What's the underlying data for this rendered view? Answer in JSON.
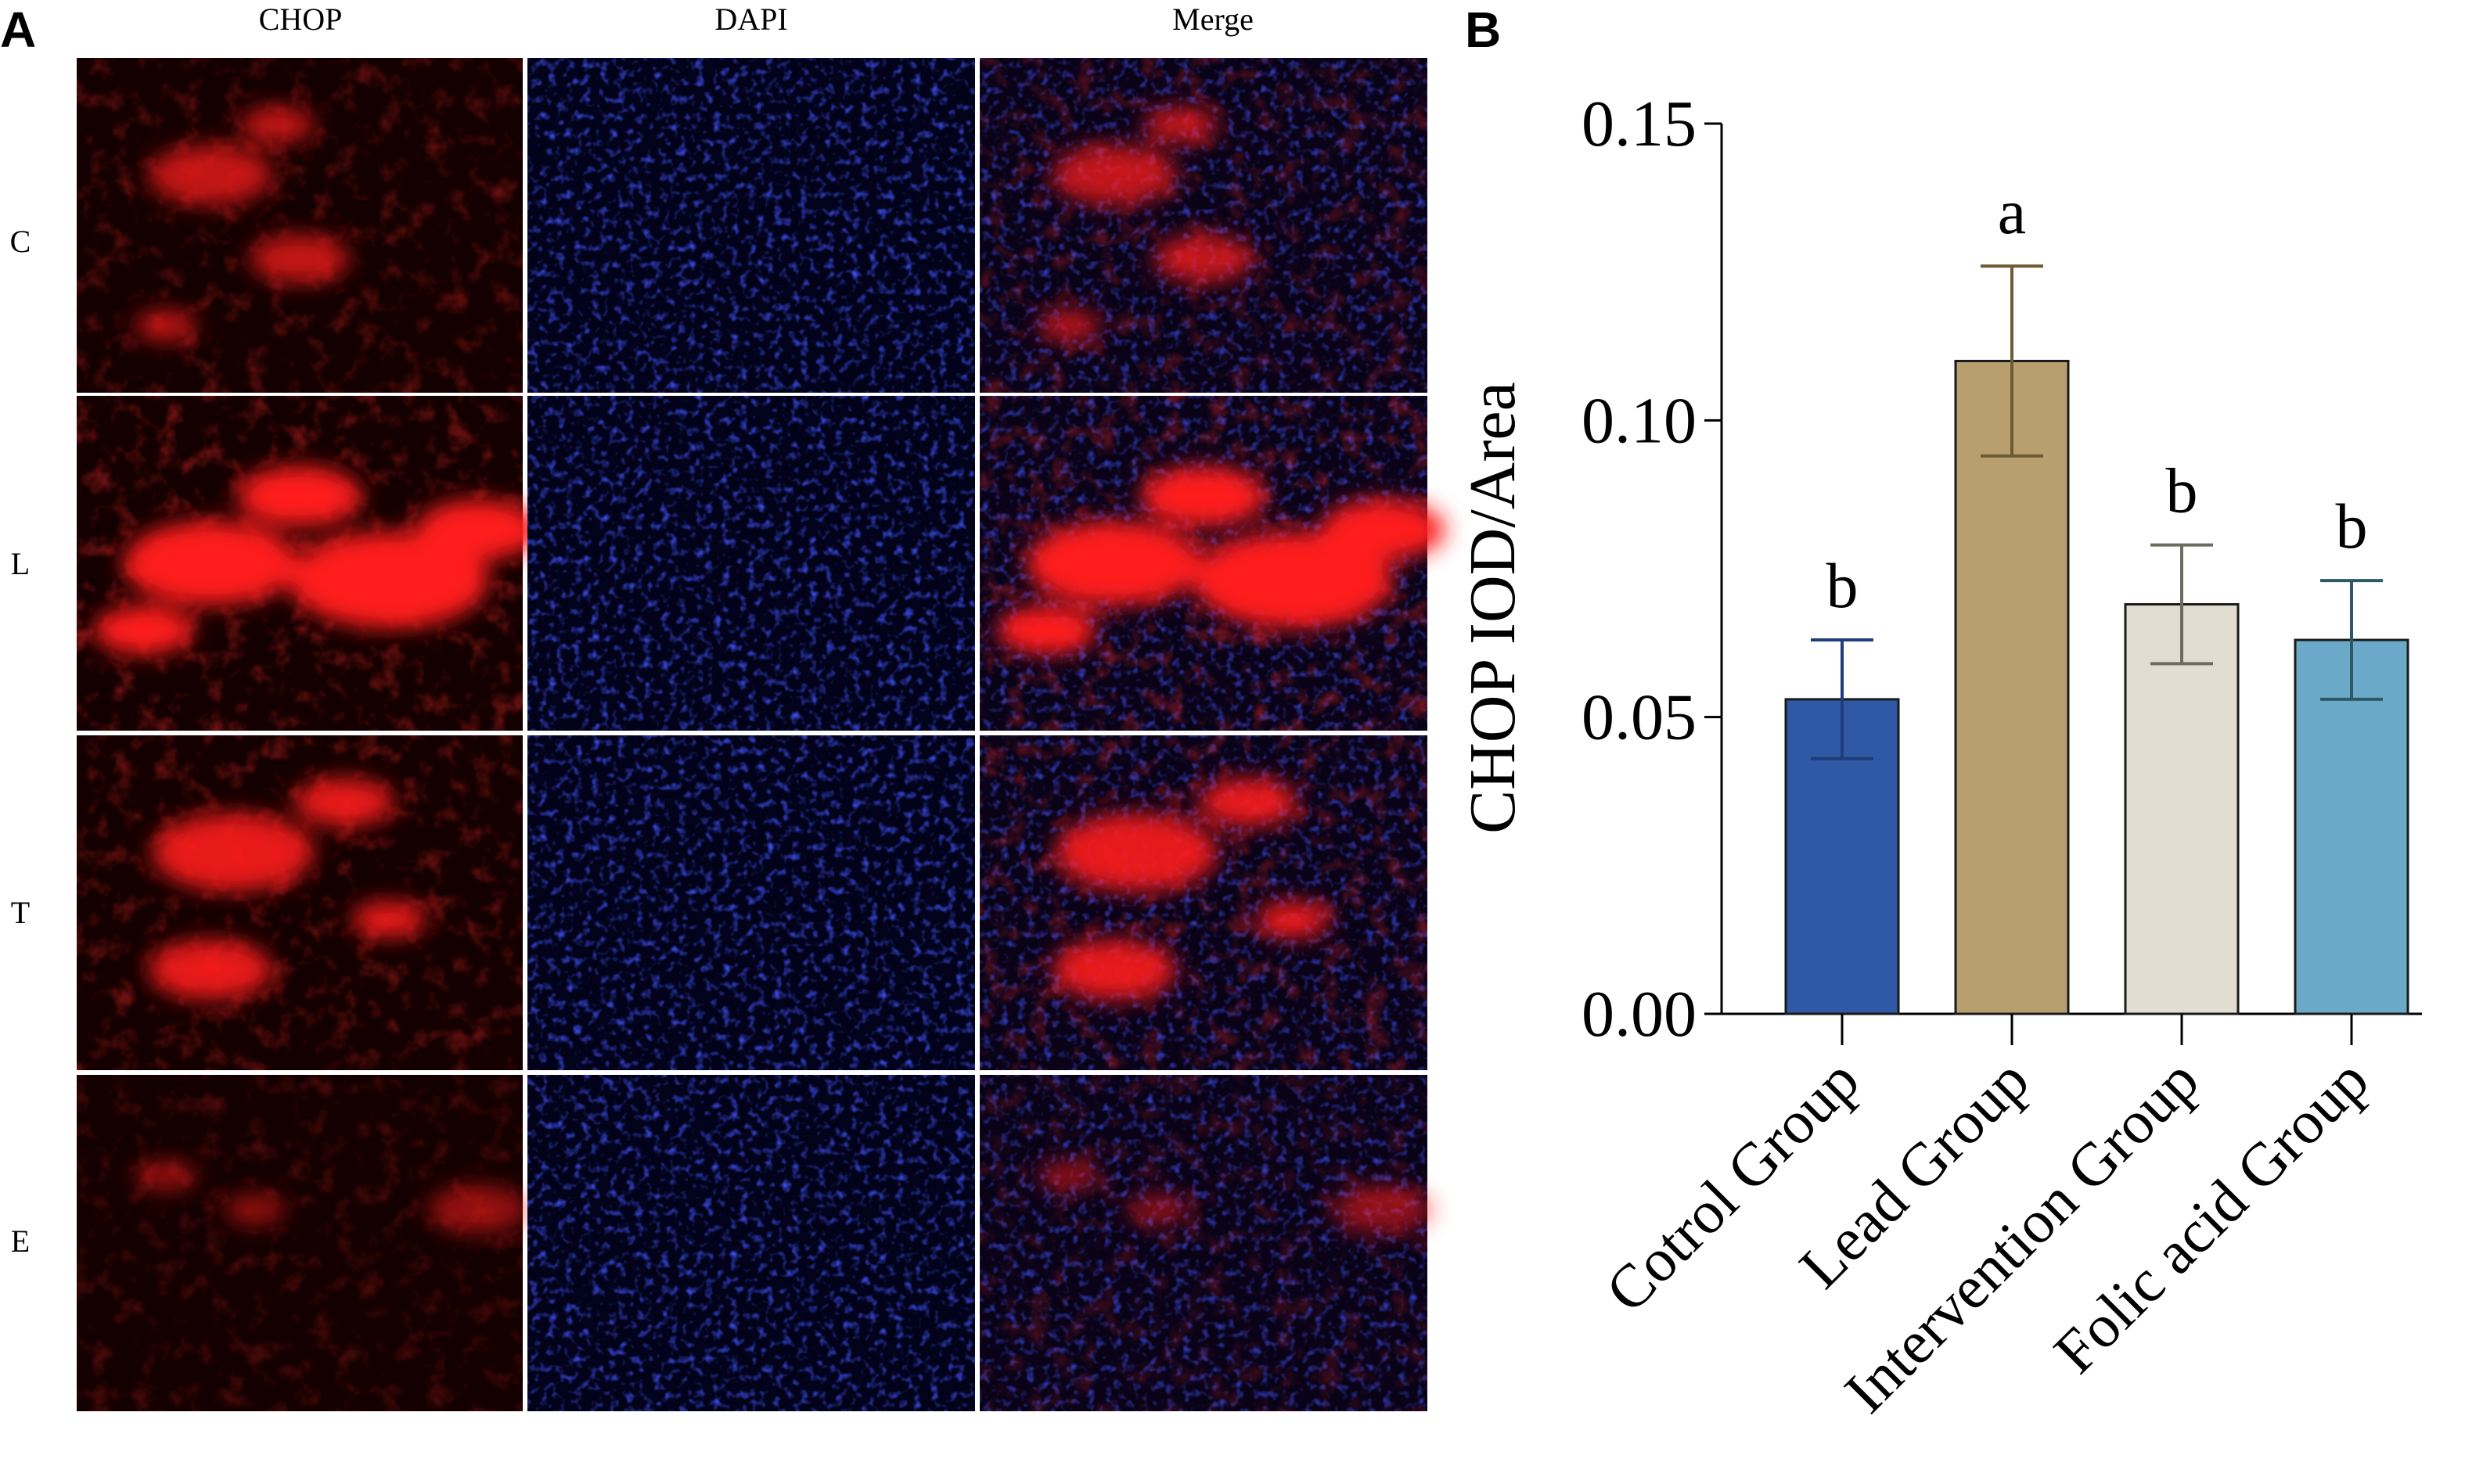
{
  "panel_a": {
    "letter": "A",
    "columns": [
      "CHOP",
      "DAPI",
      "Merge"
    ],
    "rows": [
      "C",
      "L",
      "T",
      "E"
    ],
    "channel_colors": {
      "CHOP": "#ff1a1a",
      "DAPI": "#1f2eff"
    }
  },
  "panel_b": {
    "letter": "B"
  },
  "chart_data": {
    "type": "bar",
    "categories": [
      "Cotrol Group",
      "Lead Group",
      "Intervention Group",
      "Folic acid Group"
    ],
    "values": [
      0.053,
      0.11,
      0.069,
      0.063
    ],
    "errors": [
      0.01,
      0.016,
      0.01,
      0.01
    ],
    "significance": [
      "b",
      "a",
      "b",
      "b"
    ],
    "colors": [
      "#2f58a5",
      "#b89f6f",
      "#e1ddd0",
      "#6ba9c9"
    ],
    "error_colors": [
      "#1f3d7a",
      "#6e5a33",
      "#6b6b5f",
      "#2b5a66"
    ],
    "title": "",
    "xlabel": "",
    "ylabel": "CHOP IOD/Area",
    "ylim": [
      0,
      0.15
    ],
    "yticks": [
      "0.00",
      "0.05",
      "0.10",
      "0.15"
    ],
    "ytick_values": [
      0,
      0.05,
      0.1,
      0.15
    ],
    "grid": false
  }
}
